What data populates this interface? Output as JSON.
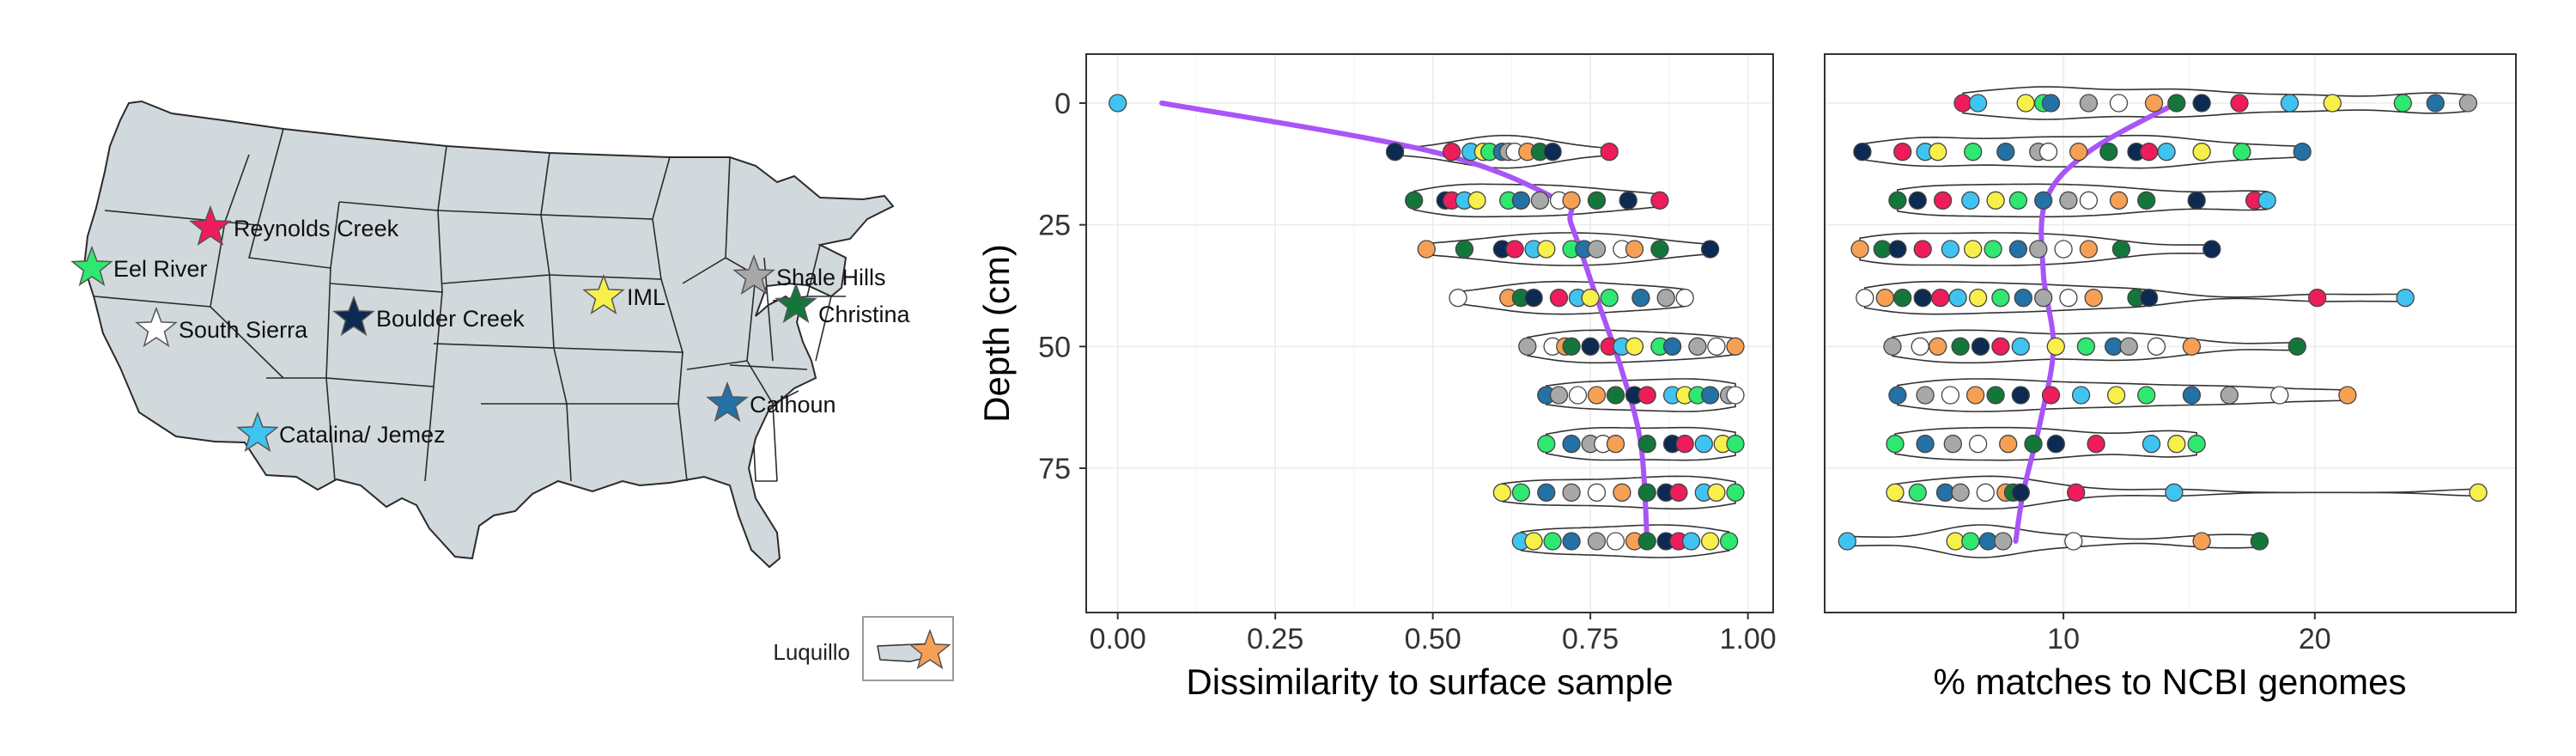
{
  "colors": {
    "map_land": "#d2d9dc",
    "map_border": "#2b2b2b",
    "trend_line": "#a855f7",
    "panel_border": "#333333",
    "grid": "#ebebeb",
    "violin_outline": "#333333"
  },
  "map": {
    "sites": [
      {
        "name": "Reynolds Creek",
        "color": "#ee1c5a"
      },
      {
        "name": "Eel River",
        "color": "#2ee86f"
      },
      {
        "name": "South Sierra",
        "color": "#ffffff"
      },
      {
        "name": "Boulder Creek",
        "color": "#0c2a52"
      },
      {
        "name": "IML",
        "color": "#f8f04a"
      },
      {
        "name": "Shale Hills",
        "color": "#a8a8a8"
      },
      {
        "name": "Christina",
        "color": "#13773b"
      },
      {
        "name": "Catalina/ Jemez",
        "color": "#3fc4f2"
      },
      {
        "name": "Calhoun",
        "color": "#2471a6"
      }
    ],
    "inset": {
      "name": "Luquillo",
      "color": "#f7a055"
    }
  },
  "chart_data": [
    {
      "type": "violin-strip",
      "xlabel": "Dissimilarity to surface sample",
      "ylabel": "Depth (cm)",
      "xlim": [
        -0.05,
        1.04
      ],
      "ylim": [
        0,
        100
      ],
      "x_ticks": [
        "0.00",
        "0.25",
        "0.50",
        "0.75",
        "1.00"
      ],
      "y_ticks": [
        "0",
        "25",
        "50",
        "75"
      ],
      "grid": true,
      "depths": [
        0,
        10,
        20,
        30,
        40,
        50,
        60,
        70,
        80,
        90
      ],
      "points_by_depth": [
        [
          0.0
        ],
        [
          0.44,
          0.53,
          0.56,
          0.58,
          0.59,
          0.61,
          0.62,
          0.63,
          0.65,
          0.67,
          0.69,
          0.78
        ],
        [
          0.47,
          0.52,
          0.53,
          0.55,
          0.57,
          0.62,
          0.64,
          0.67,
          0.7,
          0.72,
          0.76,
          0.81,
          0.86
        ],
        [
          0.49,
          0.55,
          0.61,
          0.63,
          0.66,
          0.68,
          0.72,
          0.74,
          0.76,
          0.8,
          0.82,
          0.86,
          0.94
        ],
        [
          0.54,
          0.62,
          0.64,
          0.66,
          0.7,
          0.73,
          0.75,
          0.78,
          0.83,
          0.87,
          0.9
        ],
        [
          0.65,
          0.69,
          0.71,
          0.72,
          0.75,
          0.78,
          0.8,
          0.82,
          0.86,
          0.88,
          0.92,
          0.95,
          0.98
        ],
        [
          0.68,
          0.7,
          0.73,
          0.76,
          0.79,
          0.82,
          0.84,
          0.88,
          0.9,
          0.92,
          0.94,
          0.97,
          0.98
        ],
        [
          0.68,
          0.72,
          0.75,
          0.77,
          0.79,
          0.84,
          0.88,
          0.9,
          0.93,
          0.96,
          0.98
        ],
        [
          0.61,
          0.64,
          0.68,
          0.72,
          0.76,
          0.8,
          0.84,
          0.87,
          0.89,
          0.93,
          0.95,
          0.98
        ],
        [
          0.64,
          0.66,
          0.69,
          0.72,
          0.76,
          0.79,
          0.82,
          0.84,
          0.87,
          0.89,
          0.91,
          0.94,
          0.97
        ]
      ],
      "trend": [
        {
          "depth": 0,
          "value": 0.07
        },
        {
          "depth": 10,
          "value": 0.5
        },
        {
          "depth": 20,
          "value": 0.7
        },
        {
          "depth": 25,
          "value": 0.72
        },
        {
          "depth": 40,
          "value": 0.76
        },
        {
          "depth": 55,
          "value": 0.8
        },
        {
          "depth": 70,
          "value": 0.83
        },
        {
          "depth": 90,
          "value": 0.84
        }
      ]
    },
    {
      "type": "violin-strip",
      "xlabel": "% matches to NCBI genomes",
      "ylabel": "",
      "xlim": [
        0.5,
        28
      ],
      "ylim": [
        0,
        100
      ],
      "x_ticks": [
        "10",
        "20"
      ],
      "y_ticks": [],
      "grid": true,
      "depths": [
        0,
        10,
        20,
        30,
        40,
        50,
        60,
        70,
        80,
        90
      ],
      "points_by_depth": [
        [
          6.0,
          6.6,
          8.5,
          9.2,
          9.5,
          11.0,
          12.2,
          13.6,
          14.5,
          15.5,
          17.0,
          19.0,
          20.7,
          23.5,
          24.8,
          26.1
        ],
        [
          2.0,
          3.6,
          4.5,
          5.0,
          6.4,
          7.7,
          9.0,
          9.4,
          10.6,
          11.8,
          12.9,
          13.4,
          14.1,
          15.5,
          17.1,
          19.5
        ],
        [
          3.4,
          4.2,
          5.2,
          6.3,
          7.3,
          8.2,
          9.2,
          10.2,
          11.0,
          12.2,
          13.3,
          15.3,
          17.6,
          18.1
        ],
        [
          1.9,
          2.8,
          3.4,
          4.4,
          5.5,
          6.4,
          7.2,
          8.2,
          9.0,
          10.0,
          11.0,
          12.3,
          15.9
        ],
        [
          2.1,
          2.9,
          3.6,
          4.4,
          5.1,
          5.8,
          6.6,
          7.5,
          8.4,
          9.2,
          10.2,
          11.2,
          12.9,
          13.4,
          20.1,
          23.6
        ],
        [
          3.2,
          4.3,
          5.0,
          5.9,
          6.7,
          7.5,
          8.3,
          9.7,
          10.9,
          12.0,
          12.6,
          13.7,
          15.1,
          19.3
        ],
        [
          3.4,
          4.5,
          5.5,
          6.5,
          7.3,
          8.3,
          9.5,
          10.7,
          12.1,
          13.3,
          15.1,
          16.6,
          18.6,
          21.3
        ],
        [
          3.3,
          4.5,
          5.6,
          6.6,
          7.8,
          8.8,
          9.7,
          11.3,
          13.5,
          14.5,
          15.3
        ],
        [
          3.3,
          4.2,
          5.3,
          5.9,
          6.9,
          7.7,
          8.0,
          8.3,
          10.5,
          14.4,
          26.5
        ],
        [
          1.4,
          5.7,
          6.3,
          7.0,
          7.6,
          10.4,
          15.5,
          17.8
        ]
      ],
      "trend": [
        {
          "depth": 0,
          "value": 14.5
        },
        {
          "depth": 10,
          "value": 11.0
        },
        {
          "depth": 20,
          "value": 9.3
        },
        {
          "depth": 35,
          "value": 9.2
        },
        {
          "depth": 50,
          "value": 9.6
        },
        {
          "depth": 65,
          "value": 9.1
        },
        {
          "depth": 80,
          "value": 8.4
        },
        {
          "depth": 90,
          "value": 8.1
        }
      ]
    }
  ]
}
